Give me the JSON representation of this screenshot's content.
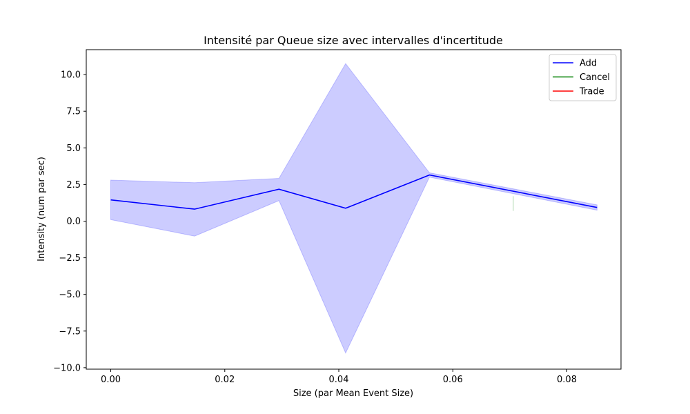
{
  "chart_data": {
    "type": "line",
    "title": "Intensité par Queue size avec intervalles d'incertitude",
    "xlabel": "Size (par Mean Event Size)",
    "ylabel": "Intensity (num par sec)",
    "xlim": [
      -0.0043,
      0.0895
    ],
    "ylim": [
      -10.1,
      11.7
    ],
    "xticks": [
      0.0,
      0.02,
      0.04,
      0.06,
      0.08
    ],
    "xtick_labels": [
      "0.00",
      "0.02",
      "0.04",
      "0.06",
      "0.08"
    ],
    "yticks": [
      -10.0,
      -7.5,
      -5.0,
      -2.5,
      0.0,
      2.5,
      5.0,
      7.5,
      10.0
    ],
    "ytick_labels": [
      "−10.0",
      "−7.5",
      "−5.0",
      "−2.5",
      "0.0",
      "2.5",
      "5.0",
      "7.5",
      "10.0"
    ],
    "grid": false,
    "legend_position": "top-right",
    "series": [
      {
        "name": "Add",
        "color": "#0000ff",
        "x": [
          0.0,
          0.0147,
          0.0295,
          0.0412,
          0.0559,
          0.0853
        ],
        "y": [
          1.45,
          0.82,
          2.18,
          0.88,
          3.15,
          0.93
        ],
        "lower": [
          0.1,
          -1.02,
          1.4,
          -9.0,
          3.0,
          0.75
        ],
        "upper": [
          2.8,
          2.62,
          2.92,
          10.75,
          3.3,
          1.11
        ]
      },
      {
        "name": "Cancel",
        "color": "#008000",
        "x": [
          0.0706
        ],
        "y": [
          1.2
        ],
        "lower": [
          0.7
        ],
        "upper": [
          1.7
        ]
      },
      {
        "name": "Trade",
        "color": "#ff0000",
        "x": [],
        "y": [],
        "lower": [],
        "upper": []
      }
    ]
  }
}
